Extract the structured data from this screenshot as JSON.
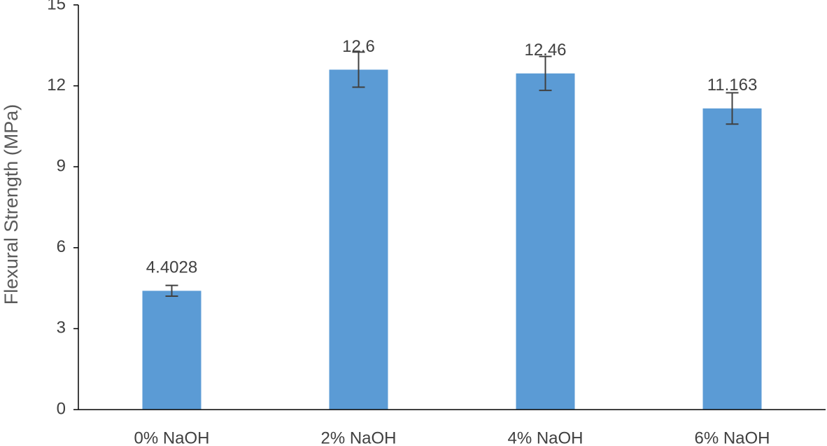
{
  "chart_data": {
    "type": "bar",
    "y_label": "Flexural Strength (MPa)",
    "categories": [
      "0% NaOH",
      "2% NaOH",
      "4% NaOH",
      "6% NaOH"
    ],
    "values": [
      4.4028,
      12.6,
      12.46,
      11.163
    ],
    "errors": [
      0.2,
      0.65,
      0.63,
      0.58
    ],
    "color": "#5b9bd5",
    "error_color": "#404040",
    "ylim": [
      0,
      15
    ],
    "yticks": [
      0,
      3,
      6,
      9,
      12,
      15
    ],
    "grid": false
  }
}
